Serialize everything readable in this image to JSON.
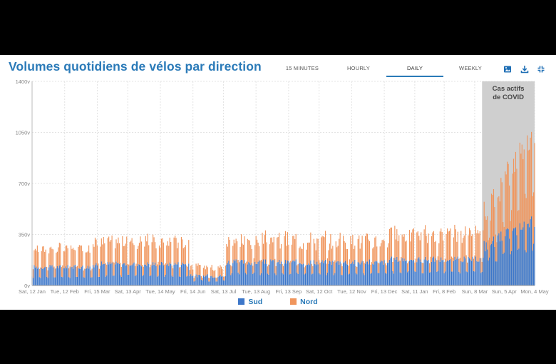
{
  "header": {
    "title": "Volumes quotidiens de vélos par direction",
    "tabs": [
      {
        "label": "15 MINUTES"
      },
      {
        "label": "HOURLY"
      },
      {
        "label": "DAILY"
      },
      {
        "label": "WEEKLY"
      }
    ],
    "active_tab": "DAILY"
  },
  "colors": {
    "sud": "#3d77c9",
    "nord": "#f0955c",
    "title": "#2a7ab8",
    "covid_band": "#cfcfcf"
  },
  "icons": [
    "image-icon",
    "download-icon",
    "fullscreen-icon"
  ],
  "chart_data": {
    "type": "bar",
    "stacked": true,
    "title": "Volumes quotidiens de vélos par direction",
    "ylim": [
      0,
      1400
    ],
    "yticks": [
      {
        "value": 0,
        "label": "0v"
      },
      {
        "value": 350,
        "label": "350v"
      },
      {
        "value": 700,
        "label": "700v"
      },
      {
        "value": 1050,
        "label": "1050v"
      },
      {
        "value": 1400,
        "label": "1400v"
      }
    ],
    "xticks": [
      {
        "day": 0,
        "label": "Sat, 12 Jan"
      },
      {
        "day": 31,
        "label": "Tue, 12 Feb"
      },
      {
        "day": 62,
        "label": "Fri, 15 Mar"
      },
      {
        "day": 91,
        "label": "Sat, 13 Apr"
      },
      {
        "day": 122,
        "label": "Tue, 14 May"
      },
      {
        "day": 153,
        "label": "Fri, 14 Jun"
      },
      {
        "day": 182,
        "label": "Sat, 13 Jul"
      },
      {
        "day": 213,
        "label": "Tue, 13 Aug"
      },
      {
        "day": 244,
        "label": "Fri, 13 Sep"
      },
      {
        "day": 273,
        "label": "Sat, 12 Oct"
      },
      {
        "day": 304,
        "label": "Tue, 12 Nov"
      },
      {
        "day": 335,
        "label": "Fri, 13 Dec"
      },
      {
        "day": 364,
        "label": "Sat, 11 Jan"
      },
      {
        "day": 392,
        "label": "Fri, 8 Feb"
      },
      {
        "day": 421,
        "label": "Sun, 8 Mar"
      },
      {
        "day": 449,
        "label": "Sun, 5 Apr"
      },
      {
        "day": 478,
        "label": "Mon, 4 May"
      }
    ],
    "day_count": 479,
    "covid_band": {
      "start_day": 428,
      "end_day": 478,
      "label_line1": "Cas actifs",
      "label_line2": "de COVID"
    },
    "series": [
      {
        "name": "Sud",
        "segments": [
          {
            "start_day": 0,
            "end_day": 60,
            "base": 120,
            "weekend_factor": 0.45,
            "spread": 30
          },
          {
            "start_day": 60,
            "end_day": 150,
            "base": 140,
            "weekend_factor": 0.45,
            "spread": 35
          },
          {
            "start_day": 150,
            "end_day": 185,
            "base": 60,
            "weekend_factor": 0.5,
            "spread": 25
          },
          {
            "start_day": 185,
            "end_day": 340,
            "base": 150,
            "weekend_factor": 0.5,
            "spread": 40
          },
          {
            "start_day": 340,
            "end_day": 430,
            "base": 170,
            "weekend_factor": 0.5,
            "spread": 40
          },
          {
            "start_day": 430,
            "end_day": 479,
            "base": 250,
            "weekend_factor": 0.6,
            "spread": 90,
            "trend_end": 420
          }
        ]
      },
      {
        "name": "Nord",
        "segments": [
          {
            "start_day": 0,
            "end_day": 60,
            "base": 110,
            "weekend_factor": 0.5,
            "spread": 70
          },
          {
            "start_day": 60,
            "end_day": 150,
            "base": 130,
            "weekend_factor": 0.5,
            "spread": 90
          },
          {
            "start_day": 150,
            "end_day": 185,
            "base": 50,
            "weekend_factor": 0.5,
            "spread": 40
          },
          {
            "start_day": 185,
            "end_day": 340,
            "base": 120,
            "weekend_factor": 0.5,
            "spread": 110
          },
          {
            "start_day": 340,
            "end_day": 430,
            "base": 140,
            "weekend_factor": 0.5,
            "spread": 110
          },
          {
            "start_day": 430,
            "end_day": 479,
            "base": 150,
            "weekend_factor": 0.6,
            "spread": 180,
            "trend_end": 600
          }
        ]
      }
    ],
    "legend": [
      {
        "name": "Sud"
      },
      {
        "name": "Nord"
      }
    ]
  }
}
